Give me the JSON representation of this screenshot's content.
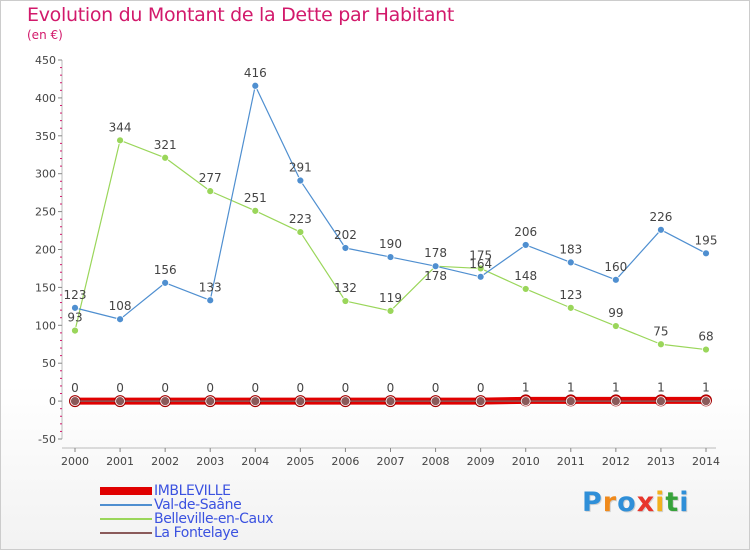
{
  "title": "Evolution du Montant de la Dette par Habitant",
  "unit_label": "(en €)",
  "logo": {
    "text": "Proxiti",
    "letter_colors": [
      "#2f8fd8",
      "#f08a1c",
      "#2f8fd8",
      "#e8362c",
      "#f2b11e",
      "#37a33a",
      "#2f8fd8"
    ]
  },
  "chart_data": {
    "type": "line",
    "title": "Evolution du Montant de la Dette par Habitant",
    "ylabel": "(en €)",
    "x": [
      2000,
      2001,
      2002,
      2003,
      2004,
      2005,
      2006,
      2007,
      2008,
      2009,
      2010,
      2011,
      2012,
      2013,
      2014
    ],
    "ylim": [
      -50,
      450
    ],
    "yticks": [
      -50,
      0,
      50,
      100,
      150,
      200,
      250,
      300,
      350,
      400,
      450
    ],
    "grid": false,
    "legend_position": "bottom-left",
    "series": [
      {
        "name": "IMBLEVILLE",
        "color": "#e00000",
        "values": [
          0,
          0,
          0,
          0,
          0,
          0,
          0,
          0,
          0,
          0,
          1,
          1,
          1,
          1,
          1
        ]
      },
      {
        "name": "Val-de-Saâne",
        "color": "#4f8fd0",
        "values": [
          123,
          108,
          156,
          133,
          416,
          291,
          202,
          190,
          178,
          164,
          206,
          183,
          160,
          226,
          195
        ]
      },
      {
        "name": "Belleville-en-Caux",
        "color": "#9ad65a",
        "values": [
          93,
          344,
          321,
          277,
          251,
          223,
          132,
          119,
          178,
          175,
          148,
          123,
          99,
          75,
          68
        ]
      },
      {
        "name": "La Fontelaye",
        "color": "#8a5a5a",
        "values": [
          0,
          0,
          0,
          0,
          0,
          0,
          0,
          0,
          0,
          0,
          0,
          0,
          0,
          0,
          0
        ]
      }
    ]
  }
}
